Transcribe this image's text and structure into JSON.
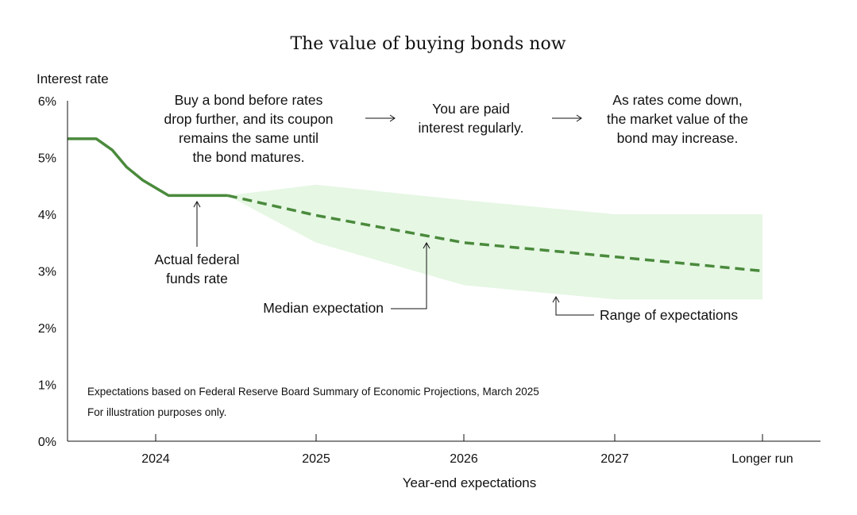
{
  "chart_data": {
    "type": "line",
    "title": "The value of buying bonds now",
    "ylabel": "Interest rate",
    "xlabel": "Year-end expectations",
    "ylim": [
      0,
      6
    ],
    "yticks": [
      "0%",
      "1%",
      "2%",
      "3%",
      "4%",
      "5%",
      "6%"
    ],
    "categories": [
      "2024",
      "2025",
      "2026",
      "2027",
      "Longer run"
    ],
    "series": [
      {
        "name": "Actual federal funds rate",
        "style": "solid",
        "color": "#4a8a3c",
        "points": [
          [
            -0.55,
            5.33
          ],
          [
            -0.37,
            5.33
          ],
          [
            -0.27,
            5.13
          ],
          [
            -0.18,
            4.83
          ],
          [
            -0.08,
            4.6
          ],
          [
            0.08,
            4.33
          ],
          [
            0.45,
            4.33
          ]
        ]
      },
      {
        "name": "Median expectation",
        "style": "dashed",
        "color": "#4a8a3c",
        "points": [
          [
            0.45,
            4.33
          ],
          [
            1,
            3.98
          ],
          [
            2,
            3.5
          ],
          [
            3,
            3.25
          ],
          [
            4,
            3.0
          ]
        ]
      }
    ],
    "range": {
      "name": "Range of expectations",
      "color": "#e6f7e4",
      "x": [
        0.45,
        1,
        2,
        3,
        4
      ],
      "upper": [
        4.33,
        4.52,
        4.25,
        4.0,
        4.0
      ],
      "lower": [
        4.33,
        3.5,
        2.75,
        2.5,
        2.5
      ]
    },
    "annotations": {
      "actual": [
        "Actual federal",
        "funds rate"
      ],
      "median": "Median expectation",
      "range": "Range of expectations",
      "step1": [
        "Buy a bond before rates",
        "drop further, and its coupon",
        "remains the same until",
        "the bond matures."
      ],
      "step2": [
        "You are paid",
        "interest regularly."
      ],
      "step3": [
        "As rates come down,",
        "the market value of the",
        "bond may increase."
      ]
    },
    "notes": [
      "Expectations based on Federal Reserve Board Summary of Economic Projections, March 2025",
      "For illustration purposes only."
    ]
  }
}
